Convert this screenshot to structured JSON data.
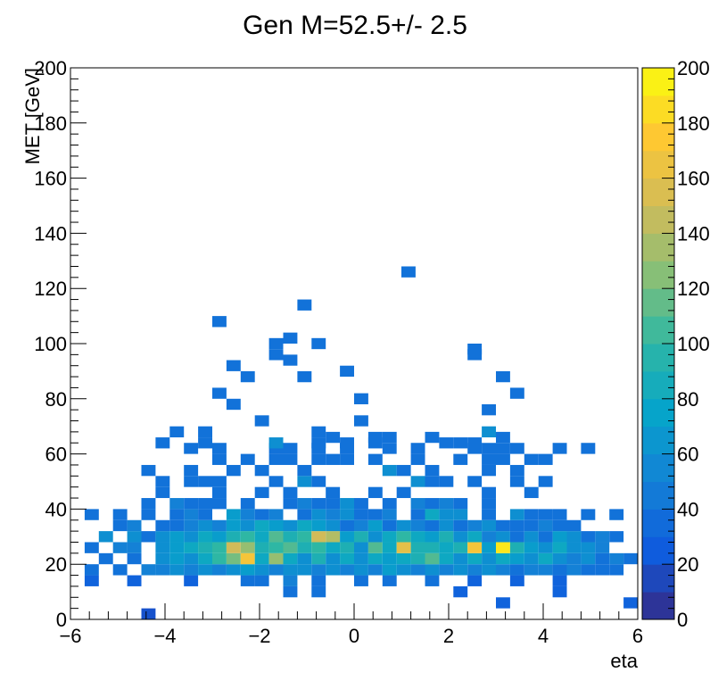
{
  "chart_data": {
    "type": "heatmap",
    "title": "Gen M=52.5+/- 2.5",
    "xlabel": "eta",
    "ylabel": "MET [GeV]",
    "xlim": [
      -6,
      6
    ],
    "ylim": [
      0,
      200
    ],
    "x_ticks": [
      "−6",
      "−4",
      "−2",
      "0",
      "2",
      "4",
      "6"
    ],
    "y_ticks": [
      "0",
      "20",
      "40",
      "60",
      "80",
      "100",
      "120",
      "140",
      "160",
      "180",
      "200"
    ],
    "colorbar": {
      "range": [
        0,
        200
      ],
      "ticks": [
        "0",
        "20",
        "40",
        "60",
        "80",
        "100",
        "120",
        "140",
        "160",
        "180",
        "200"
      ],
      "palette": [
        "#352a87",
        "#0f5cdd",
        "#1481d6",
        "#06a4ca",
        "#2eb7a4",
        "#87bf77",
        "#d1bb59",
        "#fec832",
        "#f9fb0e"
      ]
    },
    "bin_width": {
      "x": 0.3,
      "y": 4
    },
    "cells": [
      [
        -4.5,
        0,
        20
      ],
      [
        -1.5,
        8,
        40
      ],
      [
        -0.9,
        8,
        40
      ],
      [
        2.1,
        8,
        30
      ],
      [
        3.0,
        4,
        30
      ],
      [
        4.2,
        8,
        30
      ],
      [
        5.7,
        4,
        30
      ],
      [
        -5.7,
        12,
        30
      ],
      [
        -4.8,
        12,
        30
      ],
      [
        -3.6,
        12,
        30
      ],
      [
        -2.4,
        12,
        40
      ],
      [
        -2.1,
        12,
        40
      ],
      [
        -1.5,
        12,
        50
      ],
      [
        -0.9,
        12,
        40
      ],
      [
        0.0,
        12,
        40
      ],
      [
        0.6,
        12,
        40
      ],
      [
        1.5,
        12,
        40
      ],
      [
        2.4,
        12,
        30
      ],
      [
        3.3,
        12,
        30
      ],
      [
        4.2,
        12,
        30
      ],
      [
        -5.7,
        16,
        40
      ],
      [
        -5.1,
        16,
        40
      ],
      [
        -4.5,
        16,
        50
      ],
      [
        -4.2,
        16,
        50
      ],
      [
        -3.9,
        16,
        60
      ],
      [
        -3.6,
        16,
        50
      ],
      [
        -3.3,
        16,
        60
      ],
      [
        -3.0,
        16,
        50
      ],
      [
        -2.7,
        16,
        60
      ],
      [
        -2.4,
        16,
        70
      ],
      [
        -2.1,
        16,
        60
      ],
      [
        -1.8,
        16,
        50
      ],
      [
        -1.5,
        16,
        60
      ],
      [
        -1.2,
        16,
        60
      ],
      [
        -0.9,
        16,
        50
      ],
      [
        -0.6,
        16,
        60
      ],
      [
        -0.3,
        16,
        50
      ],
      [
        0.0,
        16,
        60
      ],
      [
        0.3,
        16,
        50
      ],
      [
        0.6,
        16,
        70
      ],
      [
        0.9,
        16,
        60
      ],
      [
        1.2,
        16,
        50
      ],
      [
        1.5,
        16,
        60
      ],
      [
        1.8,
        16,
        50
      ],
      [
        2.1,
        16,
        60
      ],
      [
        2.4,
        16,
        50
      ],
      [
        2.7,
        16,
        60
      ],
      [
        3.0,
        16,
        50
      ],
      [
        3.3,
        16,
        40
      ],
      [
        3.6,
        16,
        50
      ],
      [
        3.9,
        16,
        50
      ],
      [
        4.2,
        16,
        40
      ],
      [
        4.5,
        16,
        50
      ],
      [
        4.8,
        16,
        40
      ],
      [
        5.1,
        16,
        40
      ],
      [
        5.4,
        16,
        40
      ],
      [
        -5.4,
        20,
        40
      ],
      [
        -4.8,
        20,
        40
      ],
      [
        -4.2,
        20,
        60
      ],
      [
        -3.9,
        20,
        70
      ],
      [
        -3.6,
        20,
        60
      ],
      [
        -3.3,
        20,
        80
      ],
      [
        -3.0,
        20,
        100
      ],
      [
        -2.7,
        20,
        120
      ],
      [
        -2.4,
        20,
        170
      ],
      [
        -2.1,
        20,
        80
      ],
      [
        -1.8,
        20,
        130
      ],
      [
        -1.5,
        20,
        80
      ],
      [
        -1.2,
        20,
        60
      ],
      [
        -0.9,
        20,
        90
      ],
      [
        -0.6,
        20,
        60
      ],
      [
        -0.3,
        20,
        80
      ],
      [
        0.0,
        20,
        60
      ],
      [
        0.3,
        20,
        80
      ],
      [
        0.6,
        20,
        70
      ],
      [
        0.9,
        20,
        80
      ],
      [
        1.2,
        20,
        90
      ],
      [
        1.5,
        20,
        110
      ],
      [
        1.8,
        20,
        80
      ],
      [
        2.1,
        20,
        60
      ],
      [
        2.4,
        20,
        80
      ],
      [
        2.7,
        20,
        60
      ],
      [
        3.0,
        20,
        80
      ],
      [
        3.3,
        20,
        70
      ],
      [
        3.6,
        20,
        60
      ],
      [
        3.9,
        20,
        80
      ],
      [
        4.2,
        20,
        60
      ],
      [
        4.5,
        20,
        50
      ],
      [
        4.8,
        20,
        60
      ],
      [
        5.1,
        20,
        40
      ],
      [
        5.4,
        20,
        50
      ],
      [
        5.7,
        20,
        40
      ],
      [
        -5.7,
        24,
        40
      ],
      [
        -5.1,
        24,
        50
      ],
      [
        -4.8,
        24,
        50
      ],
      [
        -4.2,
        24,
        60
      ],
      [
        -3.9,
        24,
        70
      ],
      [
        -3.6,
        24,
        80
      ],
      [
        -3.3,
        24,
        90
      ],
      [
        -3.0,
        24,
        100
      ],
      [
        -2.7,
        24,
        150
      ],
      [
        -2.4,
        24,
        130
      ],
      [
        -2.1,
        24,
        90
      ],
      [
        -1.8,
        24,
        100
      ],
      [
        -1.5,
        24,
        110
      ],
      [
        -1.2,
        24,
        90
      ],
      [
        -0.9,
        24,
        100
      ],
      [
        -0.6,
        24,
        80
      ],
      [
        -0.3,
        24,
        90
      ],
      [
        0.0,
        24,
        60
      ],
      [
        0.3,
        24,
        110
      ],
      [
        0.6,
        24,
        80
      ],
      [
        0.9,
        24,
        160
      ],
      [
        1.2,
        24,
        90
      ],
      [
        1.5,
        24,
        90
      ],
      [
        1.8,
        24,
        80
      ],
      [
        2.1,
        24,
        90
      ],
      [
        2.4,
        24,
        170
      ],
      [
        2.7,
        24,
        70
      ],
      [
        3.0,
        24,
        190
      ],
      [
        3.3,
        24,
        90
      ],
      [
        3.6,
        24,
        70
      ],
      [
        3.9,
        24,
        60
      ],
      [
        4.2,
        24,
        80
      ],
      [
        4.5,
        24,
        60
      ],
      [
        4.8,
        24,
        60
      ],
      [
        5.1,
        24,
        50
      ],
      [
        -5.4,
        28,
        60
      ],
      [
        -4.8,
        28,
        60
      ],
      [
        -4.5,
        28,
        40
      ],
      [
        -4.2,
        28,
        60
      ],
      [
        -3.9,
        28,
        70
      ],
      [
        -3.6,
        28,
        60
      ],
      [
        -3.3,
        28,
        80
      ],
      [
        -3.0,
        28,
        70
      ],
      [
        -2.7,
        28,
        90
      ],
      [
        -2.4,
        28,
        100
      ],
      [
        -2.1,
        28,
        80
      ],
      [
        -1.8,
        28,
        110
      ],
      [
        -1.5,
        28,
        90
      ],
      [
        -1.2,
        28,
        100
      ],
      [
        -0.9,
        28,
        150
      ],
      [
        -0.6,
        28,
        140
      ],
      [
        -0.3,
        28,
        70
      ],
      [
        0.0,
        28,
        90
      ],
      [
        0.3,
        28,
        60
      ],
      [
        0.6,
        28,
        80
      ],
      [
        0.9,
        28,
        100
      ],
      [
        1.2,
        28,
        80
      ],
      [
        1.5,
        28,
        70
      ],
      [
        1.8,
        28,
        90
      ],
      [
        2.1,
        28,
        60
      ],
      [
        2.4,
        28,
        80
      ],
      [
        2.7,
        28,
        50
      ],
      [
        3.0,
        28,
        60
      ],
      [
        3.3,
        28,
        40
      ],
      [
        3.6,
        28,
        60
      ],
      [
        3.9,
        28,
        40
      ],
      [
        4.2,
        28,
        70
      ],
      [
        4.5,
        28,
        60
      ],
      [
        4.8,
        28,
        40
      ],
      [
        5.1,
        28,
        50
      ],
      [
        5.4,
        28,
        40
      ],
      [
        -5.1,
        32,
        40
      ],
      [
        -4.8,
        32,
        50
      ],
      [
        -4.2,
        32,
        40
      ],
      [
        -3.9,
        32,
        40
      ],
      [
        -3.6,
        32,
        50
      ],
      [
        -3.3,
        32,
        60
      ],
      [
        -3.0,
        32,
        50
      ],
      [
        -2.7,
        32,
        70
      ],
      [
        -2.4,
        32,
        60
      ],
      [
        -2.1,
        32,
        80
      ],
      [
        -1.8,
        32,
        70
      ],
      [
        -1.5,
        32,
        60
      ],
      [
        -1.2,
        32,
        80
      ],
      [
        -0.9,
        32,
        70
      ],
      [
        -0.6,
        32,
        60
      ],
      [
        -0.3,
        32,
        40
      ],
      [
        0.0,
        32,
        50
      ],
      [
        0.3,
        32,
        70
      ],
      [
        0.6,
        32,
        40
      ],
      [
        0.9,
        32,
        60
      ],
      [
        1.2,
        32,
        50
      ],
      [
        1.5,
        32,
        40
      ],
      [
        1.8,
        32,
        60
      ],
      [
        2.1,
        32,
        40
      ],
      [
        2.4,
        32,
        50
      ],
      [
        2.7,
        32,
        60
      ],
      [
        3.0,
        32,
        40
      ],
      [
        3.3,
        32,
        40
      ],
      [
        3.6,
        32,
        40
      ],
      [
        3.9,
        32,
        50
      ],
      [
        4.2,
        32,
        40
      ],
      [
        4.5,
        32,
        40
      ],
      [
        -5.7,
        36,
        40
      ],
      [
        -5.1,
        36,
        40
      ],
      [
        -4.5,
        36,
        40
      ],
      [
        -3.9,
        36,
        40
      ],
      [
        -3.6,
        36,
        50
      ],
      [
        -3.3,
        36,
        40
      ],
      [
        -2.7,
        36,
        70
      ],
      [
        -2.4,
        36,
        50
      ],
      [
        -2.1,
        36,
        40
      ],
      [
        -1.8,
        36,
        50
      ],
      [
        -1.2,
        36,
        40
      ],
      [
        -0.9,
        36,
        60
      ],
      [
        -0.6,
        36,
        50
      ],
      [
        -0.3,
        36,
        60
      ],
      [
        0.0,
        36,
        40
      ],
      [
        0.3,
        36,
        40
      ],
      [
        0.6,
        36,
        50
      ],
      [
        1.2,
        36,
        40
      ],
      [
        1.5,
        36,
        80
      ],
      [
        1.8,
        36,
        60
      ],
      [
        2.1,
        36,
        60
      ],
      [
        2.7,
        36,
        40
      ],
      [
        3.3,
        36,
        60
      ],
      [
        3.6,
        36,
        40
      ],
      [
        3.9,
        36,
        40
      ],
      [
        4.2,
        36,
        40
      ],
      [
        4.8,
        36,
        40
      ],
      [
        5.4,
        36,
        40
      ],
      [
        -4.5,
        40,
        40
      ],
      [
        -3.9,
        40,
        50
      ],
      [
        -3.6,
        40,
        40
      ],
      [
        -3.3,
        40,
        40
      ],
      [
        -3.0,
        40,
        40
      ],
      [
        -2.4,
        40,
        40
      ],
      [
        -1.5,
        40,
        40
      ],
      [
        -1.2,
        40,
        50
      ],
      [
        -0.9,
        40,
        40
      ],
      [
        -0.6,
        40,
        40
      ],
      [
        -0.3,
        40,
        60
      ],
      [
        0.0,
        40,
        40
      ],
      [
        0.6,
        40,
        40
      ],
      [
        1.2,
        40,
        50
      ],
      [
        1.5,
        40,
        40
      ],
      [
        1.8,
        40,
        50
      ],
      [
        2.1,
        40,
        40
      ],
      [
        2.7,
        40,
        40
      ],
      [
        -4.2,
        44,
        40
      ],
      [
        -3.0,
        44,
        40
      ],
      [
        -2.1,
        44,
        40
      ],
      [
        -1.5,
        44,
        40
      ],
      [
        -0.6,
        44,
        40
      ],
      [
        0.3,
        44,
        40
      ],
      [
        0.9,
        44,
        40
      ],
      [
        2.7,
        44,
        40
      ],
      [
        3.6,
        44,
        40
      ],
      [
        -4.2,
        48,
        40
      ],
      [
        -3.6,
        48,
        40
      ],
      [
        -3.3,
        48,
        40
      ],
      [
        -3.0,
        48,
        40
      ],
      [
        -1.8,
        48,
        40
      ],
      [
        -1.2,
        48,
        60
      ],
      [
        -0.9,
        48,
        40
      ],
      [
        1.2,
        48,
        60
      ],
      [
        1.5,
        48,
        40
      ],
      [
        1.8,
        48,
        40
      ],
      [
        2.4,
        48,
        40
      ],
      [
        3.3,
        48,
        40
      ],
      [
        3.9,
        48,
        40
      ],
      [
        -4.5,
        52,
        40
      ],
      [
        -3.6,
        52,
        40
      ],
      [
        -2.7,
        52,
        40
      ],
      [
        -2.1,
        52,
        40
      ],
      [
        -1.2,
        52,
        40
      ],
      [
        0.6,
        52,
        60
      ],
      [
        0.9,
        52,
        40
      ],
      [
        1.5,
        52,
        40
      ],
      [
        2.7,
        52,
        40
      ],
      [
        3.3,
        52,
        40
      ],
      [
        -3.0,
        56,
        40
      ],
      [
        -2.4,
        56,
        40
      ],
      [
        -1.8,
        56,
        40
      ],
      [
        -1.5,
        56,
        40
      ],
      [
        -0.9,
        56,
        40
      ],
      [
        -0.6,
        56,
        40
      ],
      [
        -0.3,
        56,
        40
      ],
      [
        0.3,
        56,
        40
      ],
      [
        1.2,
        56,
        40
      ],
      [
        2.1,
        56,
        40
      ],
      [
        2.7,
        56,
        40
      ],
      [
        3.0,
        56,
        40
      ],
      [
        3.6,
        56,
        40
      ],
      [
        3.9,
        56,
        40
      ],
      [
        -3.6,
        60,
        40
      ],
      [
        -3.0,
        60,
        40
      ],
      [
        -1.8,
        60,
        40
      ],
      [
        -1.5,
        60,
        40
      ],
      [
        -0.9,
        60,
        40
      ],
      [
        -0.3,
        60,
        40
      ],
      [
        0.6,
        60,
        40
      ],
      [
        1.2,
        60,
        40
      ],
      [
        2.4,
        60,
        40
      ],
      [
        2.7,
        60,
        40
      ],
      [
        3.0,
        60,
        40
      ],
      [
        3.3,
        60,
        40
      ],
      [
        4.2,
        60,
        40
      ],
      [
        4.8,
        60,
        40
      ],
      [
        -0.6,
        64,
        40
      ],
      [
        0.3,
        64,
        40
      ],
      [
        0.6,
        64,
        40
      ],
      [
        1.5,
        64,
        40
      ],
      [
        3.0,
        64,
        40
      ],
      [
        -4.2,
        62,
        40
      ],
      [
        -3.3,
        62,
        40
      ],
      [
        -1.8,
        62,
        60
      ],
      [
        -0.9,
        62,
        40
      ],
      [
        -0.3,
        62,
        40
      ],
      [
        0.3,
        62,
        40
      ],
      [
        1.8,
        62,
        40
      ],
      [
        2.1,
        62,
        40
      ],
      [
        2.4,
        62,
        40
      ],
      [
        2.7,
        66,
        60
      ],
      [
        -3.9,
        66,
        40
      ],
      [
        -3.3,
        66,
        40
      ],
      [
        -2.1,
        70,
        40
      ],
      [
        -0.9,
        66,
        40
      ],
      [
        0.0,
        70,
        40
      ],
      [
        2.7,
        74,
        40
      ],
      [
        -2.7,
        76,
        40
      ],
      [
        0.0,
        78,
        40
      ],
      [
        -3.0,
        80,
        40
      ],
      [
        3.3,
        80,
        40
      ],
      [
        -2.4,
        86,
        40
      ],
      [
        -1.2,
        86,
        40
      ],
      [
        -0.3,
        88,
        40
      ],
      [
        3.0,
        86,
        40
      ],
      [
        -2.7,
        90,
        40
      ],
      [
        -1.8,
        94,
        40
      ],
      [
        -1.5,
        92,
        40
      ],
      [
        2.4,
        94,
        40
      ],
      [
        2.4,
        96,
        40
      ],
      [
        -1.8,
        98,
        40
      ],
      [
        -1.5,
        100,
        40
      ],
      [
        -0.9,
        98,
        40
      ],
      [
        -3.0,
        106,
        40
      ],
      [
        -1.2,
        112,
        40
      ],
      [
        1.0,
        124,
        40
      ]
    ]
  }
}
